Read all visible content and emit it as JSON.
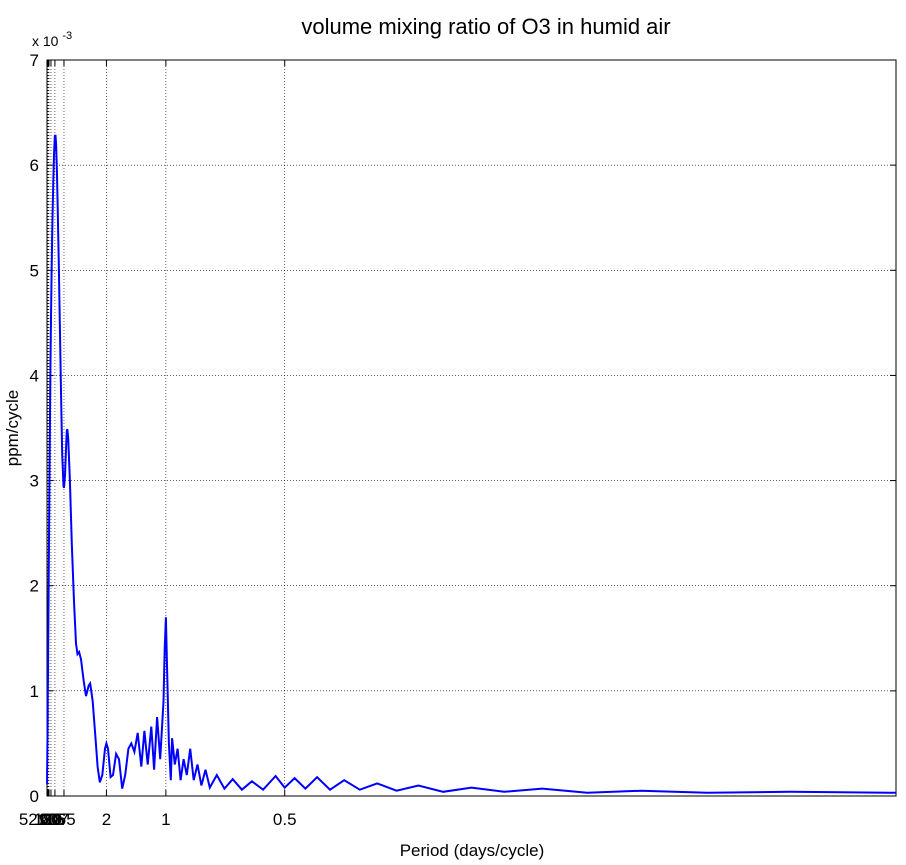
{
  "chart_data": {
    "type": "line",
    "title": "volume mixing ratio of O3 in humid air",
    "xlabel": "Period (days/cycle)",
    "ylabel": "ppm/cycle",
    "y_exponent_label": "x 10",
    "y_exponent_power": "-3",
    "ylim": [
      0,
      7
    ],
    "y_ticks": [
      0,
      1,
      2,
      3,
      4,
      5,
      6,
      7
    ],
    "x_ticks": [
      {
        "label": "521",
        "period_days": 521
      },
      {
        "label": "365",
        "period_days": 365
      },
      {
        "label": "180",
        "period_days": 180
      },
      {
        "label": "120",
        "period_days": 120
      },
      {
        "label": "90",
        "period_days": 90
      },
      {
        "label": "60",
        "period_days": 60
      },
      {
        "label": "30",
        "period_days": 30
      },
      {
        "label": "15",
        "period_days": 15
      },
      {
        "label": "7",
        "period_days": 7
      },
      {
        "label": "2",
        "period_days": 2
      },
      {
        "label": "1",
        "period_days": 1
      },
      {
        "label": "0.5",
        "period_days": 0.5
      }
    ],
    "x_scale": "reciprocal (frequency-linear)",
    "xlim_period_days": [
      null,
      0.14
    ],
    "grid": true,
    "line_color": "#0000ff",
    "series": [
      {
        "points": [
          [
            2000,
            0.11
          ],
          [
            1400,
            0.14
          ],
          [
            1000,
            0.18
          ],
          [
            800,
            0.22
          ],
          [
            600,
            0.28
          ],
          [
            521,
            0.31
          ],
          [
            450,
            0.34
          ],
          [
            365,
            0.41
          ],
          [
            300,
            0.48
          ],
          [
            250,
            0.56
          ],
          [
            210,
            0.66
          ],
          [
            180,
            0.76
          ],
          [
            160,
            0.86
          ],
          [
            140,
            0.99
          ],
          [
            120,
            1.16
          ],
          [
            105,
            1.35
          ],
          [
            90,
            1.58
          ],
          [
            80,
            1.8
          ],
          [
            70,
            2.07
          ],
          [
            60,
            2.42
          ],
          [
            52,
            2.78
          ],
          [
            45,
            3.18
          ],
          [
            40,
            3.6
          ],
          [
            35,
            4.05
          ],
          [
            30,
            4.55
          ],
          [
            26,
            4.98
          ],
          [
            22,
            5.45
          ],
          [
            19,
            5.85
          ],
          [
            17,
            6.1
          ],
          [
            15.5,
            6.25
          ],
          [
            15,
            6.28
          ],
          [
            14,
            6.28
          ],
          [
            13,
            6.2
          ],
          [
            12,
            5.95
          ],
          [
            11,
            5.55
          ],
          [
            10,
            5.0
          ],
          [
            9.2,
            4.45
          ],
          [
            8.5,
            3.85
          ],
          [
            7.8,
            3.25
          ],
          [
            7.2,
            2.95
          ],
          [
            7.0,
            2.93
          ],
          [
            6.6,
            3.05
          ],
          [
            6.2,
            3.35
          ],
          [
            6.0,
            3.47
          ],
          [
            5.85,
            3.49
          ],
          [
            5.6,
            3.4
          ],
          [
            5.2,
            3.0
          ],
          [
            4.8,
            2.4
          ],
          [
            4.4,
            1.85
          ],
          [
            4.1,
            1.45
          ],
          [
            3.9,
            1.35
          ],
          [
            3.7,
            1.37
          ],
          [
            3.5,
            1.3
          ],
          [
            3.25,
            1.1
          ],
          [
            3.05,
            0.95
          ],
          [
            2.85,
            1.05
          ],
          [
            2.75,
            1.07
          ],
          [
            2.6,
            0.9
          ],
          [
            2.45,
            0.55
          ],
          [
            2.35,
            0.28
          ],
          [
            2.25,
            0.13
          ],
          [
            2.15,
            0.2
          ],
          [
            2.05,
            0.45
          ],
          [
            2.0,
            0.5
          ],
          [
            1.95,
            0.45
          ],
          [
            1.87,
            0.18
          ],
          [
            1.8,
            0.2
          ],
          [
            1.72,
            0.4
          ],
          [
            1.65,
            0.35
          ],
          [
            1.58,
            0.07
          ],
          [
            1.52,
            0.2
          ],
          [
            1.46,
            0.45
          ],
          [
            1.41,
            0.5
          ],
          [
            1.36,
            0.42
          ],
          [
            1.31,
            0.6
          ],
          [
            1.26,
            0.28
          ],
          [
            1.22,
            0.62
          ],
          [
            1.18,
            0.3
          ],
          [
            1.14,
            0.66
          ],
          [
            1.11,
            0.25
          ],
          [
            1.08,
            0.75
          ],
          [
            1.05,
            0.35
          ],
          [
            1.02,
            0.9
          ],
          [
            1.01,
            1.4
          ],
          [
            1.0,
            1.7
          ],
          [
            0.99,
            1.2
          ],
          [
            0.975,
            0.5
          ],
          [
            0.96,
            0.15
          ],
          [
            0.95,
            0.55
          ],
          [
            0.93,
            0.3
          ],
          [
            0.91,
            0.45
          ],
          [
            0.89,
            0.15
          ],
          [
            0.87,
            0.35
          ],
          [
            0.85,
            0.2
          ],
          [
            0.83,
            0.45
          ],
          [
            0.81,
            0.15
          ],
          [
            0.79,
            0.3
          ],
          [
            0.77,
            0.1
          ],
          [
            0.75,
            0.25
          ],
          [
            0.73,
            0.08
          ],
          [
            0.7,
            0.2
          ],
          [
            0.67,
            0.07
          ],
          [
            0.64,
            0.16
          ],
          [
            0.61,
            0.06
          ],
          [
            0.58,
            0.14
          ],
          [
            0.55,
            0.06
          ],
          [
            0.52,
            0.19
          ],
          [
            0.5,
            0.08
          ],
          [
            0.48,
            0.17
          ],
          [
            0.46,
            0.07
          ],
          [
            0.44,
            0.18
          ],
          [
            0.42,
            0.06
          ],
          [
            0.4,
            0.15
          ],
          [
            0.38,
            0.06
          ],
          [
            0.36,
            0.12
          ],
          [
            0.34,
            0.05
          ],
          [
            0.32,
            0.1
          ],
          [
            0.3,
            0.04
          ],
          [
            0.28,
            0.08
          ],
          [
            0.26,
            0.04
          ],
          [
            0.24,
            0.07
          ],
          [
            0.22,
            0.03
          ],
          [
            0.2,
            0.05
          ],
          [
            0.18,
            0.03
          ],
          [
            0.16,
            0.04
          ],
          [
            0.14,
            0.03
          ]
        ]
      }
    ]
  }
}
